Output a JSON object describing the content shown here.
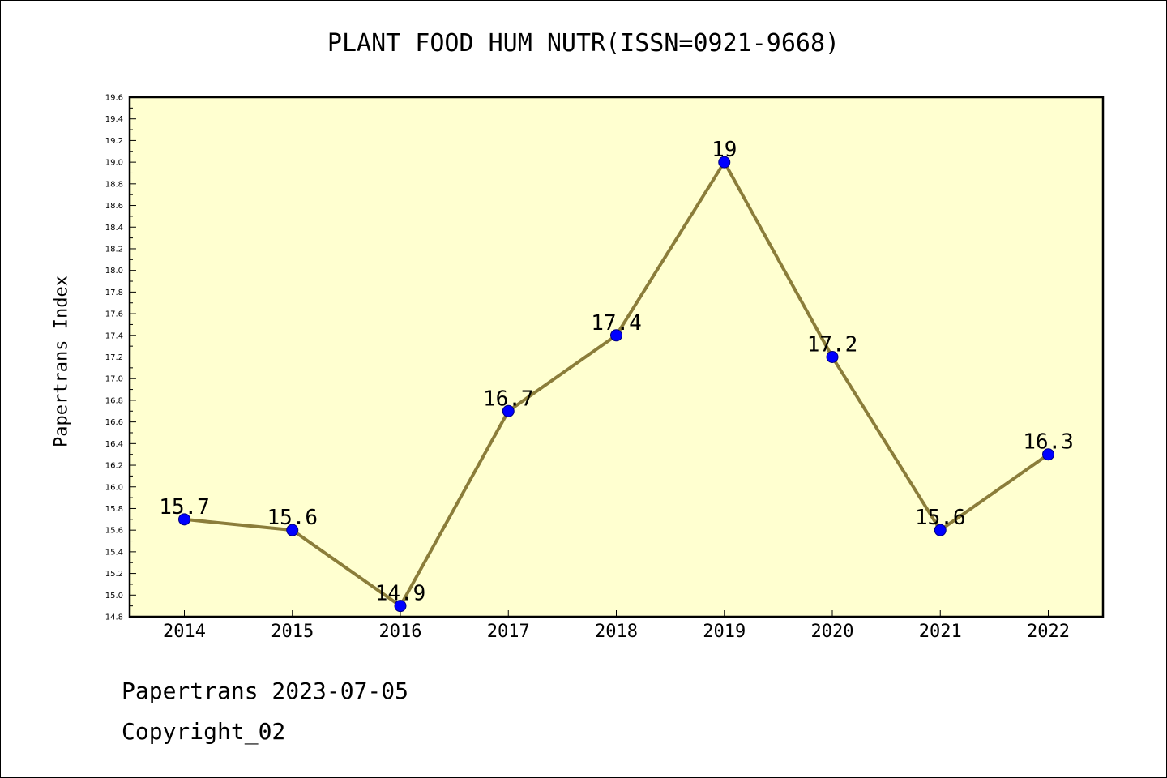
{
  "chart_data": {
    "type": "line",
    "title": "PLANT FOOD HUM NUTR(ISSN=0921-9668)",
    "xlabel": "",
    "ylabel": "Papertrans Index",
    "categories": [
      "2014",
      "2015",
      "2016",
      "2017",
      "2018",
      "2019",
      "2020",
      "2021",
      "2022"
    ],
    "series": [
      {
        "values": [
          15.7,
          15.6,
          14.9,
          16.7,
          17.4,
          19.0,
          17.2,
          15.6,
          16.3
        ]
      }
    ],
    "data_labels": [
      "15.7",
      "15.6",
      "14.9",
      "16.7",
      "17.4",
      "19",
      "17.2",
      "15.6",
      "16.3"
    ],
    "ylim": [
      14.8,
      19.6
    ],
    "yticks": [
      "14.8",
      "15.0",
      "15.2",
      "15.4",
      "15.6",
      "15.8",
      "16.0",
      "16.2",
      "16.4",
      "16.6",
      "16.8",
      "17.0",
      "17.2",
      "17.4",
      "17.6",
      "17.8",
      "18.0",
      "18.2",
      "18.4",
      "18.6",
      "18.8",
      "19.0",
      "19.2",
      "19.4",
      "19.6"
    ],
    "grid": false,
    "legend": "none",
    "colors": {
      "plot_bg": "#FFFFD0",
      "line": "#8B7D3A",
      "marker": "#0000FF",
      "marker_edge": "#000080"
    }
  },
  "footer": {
    "line1": "Papertrans 2023-07-05",
    "line2": "Copyright_02"
  }
}
